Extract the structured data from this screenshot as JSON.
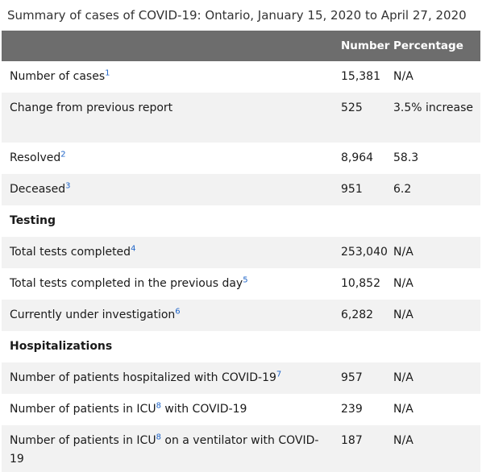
{
  "caption": "Summary of cases of COVID-19: Ontario, January 15, 2020 to April 27, 2020",
  "header": {
    "label": "",
    "number": "Number",
    "percentage": "Percentage"
  },
  "rows": [
    {
      "label": "Number of cases",
      "sup": "1",
      "number": "15,381",
      "percentage": "N/A"
    },
    {
      "label": "Change from previous report",
      "sup": "",
      "number": "525",
      "percentage": "3.5% increase"
    },
    {
      "label": "Resolved",
      "sup": "2",
      "number": "8,964",
      "percentage": "58.3"
    },
    {
      "label": "Deceased",
      "sup": "3",
      "number": "951",
      "percentage": "6.2"
    }
  ],
  "testing": {
    "heading": "Testing",
    "rows": [
      {
        "label": "Total tests completed",
        "sup": "4",
        "number": "253,040",
        "percentage": "N/A"
      },
      {
        "label": "Total tests completed in the previous day",
        "sup": "5",
        "number": "10,852",
        "percentage": "N/A"
      },
      {
        "label": "Currently under investigation",
        "sup": "6",
        "number": "6,282",
        "percentage": "N/A"
      }
    ]
  },
  "hospitalizations": {
    "heading": "Hospitalizations",
    "rows": [
      {
        "label": "Number of patients hospitalized with COVID-19",
        "sup": "7",
        "label_after": "",
        "number": "957",
        "percentage": "N/A"
      },
      {
        "label": "Number of patients in ICU",
        "sup": "8",
        "label_after": " with COVID-19",
        "number": "239",
        "percentage": "N/A"
      },
      {
        "label": "Number of patients in ICU",
        "sup": "8",
        "label_after": " on a ventilator with COVID-19",
        "number": "187",
        "percentage": "N/A"
      }
    ]
  }
}
